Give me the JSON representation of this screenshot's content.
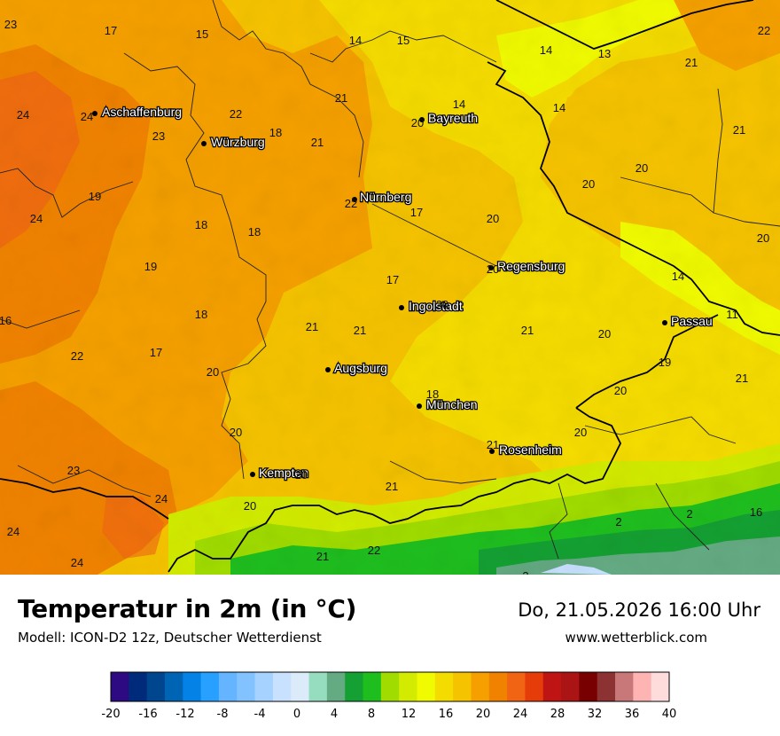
{
  "header": {
    "title": "Temperatur in 2m (in °C)",
    "model": "Modell: ICON-D2 12z, Deutscher Wetterdienst",
    "datetime": "Do, 21.05.2026 16:00 Uhr",
    "website": "www.wetterblick.com"
  },
  "cities": [
    {
      "name": "Aschaffenburg"
    },
    {
      "name": "Würzburg"
    },
    {
      "name": "Bayreuth"
    },
    {
      "name": "Nürnberg"
    },
    {
      "name": "Regensburg"
    },
    {
      "name": "Ingolstadt"
    },
    {
      "name": "Passau"
    },
    {
      "name": "Augsburg"
    },
    {
      "name": "München"
    },
    {
      "name": "Rosenheim"
    },
    {
      "name": "Kempten"
    }
  ],
  "values": [
    "23",
    "17",
    "15",
    "14",
    "15",
    "14",
    "13",
    "22",
    "21",
    "24",
    "24",
    "22",
    "21",
    "14",
    "14",
    "18",
    "23",
    "21",
    "20",
    "21",
    "20",
    "20",
    "19",
    "24",
    "22",
    "17",
    "20",
    "18",
    "18",
    "19",
    "20",
    "17",
    "20",
    "14",
    "18",
    "20",
    "21",
    "21",
    "11",
    "16",
    "22",
    "17",
    "21",
    "20",
    "20",
    "19",
    "21",
    "18",
    "20",
    "20",
    "21",
    "20",
    "23",
    "20",
    "24",
    "21",
    "20",
    "2",
    "2",
    "16",
    "24",
    "24",
    "21",
    "22",
    "3"
  ],
  "legend": {
    "ticks": [
      "-20",
      "-16",
      "-12",
      "-8",
      "-4",
      "0",
      "4",
      "8",
      "12",
      "16",
      "20",
      "24",
      "28",
      "32",
      "36",
      "40"
    ],
    "colors": [
      "#2d0a82",
      "#002a7a",
      "#00468e",
      "#0064b4",
      "#0482e6",
      "#28a0ff",
      "#64b4ff",
      "#82c3ff",
      "#a5d2ff",
      "#c8e1ff",
      "#dcebfa",
      "#96dcbe",
      "#64aa82",
      "#14a032",
      "#1ebe1e",
      "#a0dc00",
      "#d2eb00",
      "#f0fa00",
      "#f5dc00",
      "#f5c300",
      "#f5a000",
      "#f08200",
      "#f06414",
      "#e63c0a",
      "#be1414",
      "#aa1414",
      "#780000",
      "#8c3232",
      "#c87878",
      "#ffb4b4",
      "#ffdcdc"
    ]
  }
}
